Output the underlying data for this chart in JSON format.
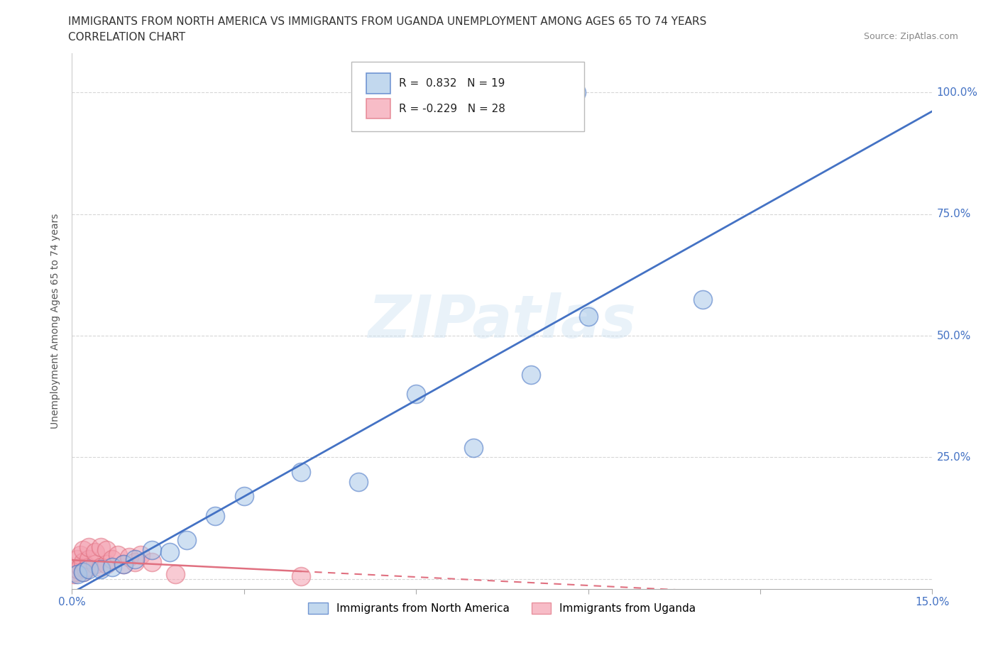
{
  "title_line1": "IMMIGRANTS FROM NORTH AMERICA VS IMMIGRANTS FROM UGANDA UNEMPLOYMENT AMONG AGES 65 TO 74 YEARS",
  "title_line2": "CORRELATION CHART",
  "source": "Source: ZipAtlas.com",
  "ylabel": "Unemployment Among Ages 65 to 74 years",
  "xlim": [
    0.0,
    0.15
  ],
  "ylim": [
    -0.02,
    1.08
  ],
  "xticks": [
    0.0,
    0.03,
    0.06,
    0.09,
    0.12,
    0.15
  ],
  "xticklabels": [
    "0.0%",
    "",
    "",
    "",
    "",
    "15.0%"
  ],
  "yticks": [
    0.0,
    0.25,
    0.5,
    0.75,
    1.0
  ],
  "yticklabels": [
    "",
    "25.0%",
    "50.0%",
    "75.0%",
    "100.0%"
  ],
  "north_america_x": [
    0.001,
    0.002,
    0.003,
    0.005,
    0.007,
    0.009,
    0.011,
    0.014,
    0.017,
    0.02,
    0.025,
    0.03,
    0.04,
    0.05,
    0.06,
    0.07,
    0.08,
    0.09,
    0.11
  ],
  "north_america_y": [
    0.01,
    0.015,
    0.02,
    0.02,
    0.025,
    0.03,
    0.04,
    0.06,
    0.055,
    0.08,
    0.13,
    0.17,
    0.22,
    0.2,
    0.38,
    0.27,
    0.42,
    0.54,
    0.575
  ],
  "outlier_x": [
    0.088
  ],
  "outlier_y": [
    1.0
  ],
  "uganda_x": [
    0.0003,
    0.0005,
    0.001,
    0.001,
    0.0015,
    0.0015,
    0.002,
    0.002,
    0.002,
    0.0025,
    0.003,
    0.003,
    0.003,
    0.004,
    0.004,
    0.005,
    0.005,
    0.006,
    0.006,
    0.007,
    0.008,
    0.009,
    0.01,
    0.011,
    0.012,
    0.014,
    0.018,
    0.04
  ],
  "uganda_y": [
    0.01,
    0.015,
    0.02,
    0.04,
    0.025,
    0.05,
    0.015,
    0.035,
    0.06,
    0.02,
    0.025,
    0.04,
    0.065,
    0.03,
    0.055,
    0.025,
    0.065,
    0.03,
    0.06,
    0.04,
    0.05,
    0.03,
    0.045,
    0.035,
    0.05,
    0.035,
    0.01,
    0.005
  ],
  "uganda_outlier_x": [
    0.04
  ],
  "uganda_outlier_y": [
    0.005
  ],
  "r_north_america": "0.832",
  "n_north_america": "19",
  "r_uganda": "-0.229",
  "n_uganda": "28",
  "blue_fill": "#a8c8e8",
  "blue_edge": "#4472c4",
  "blue_line": "#4472c4",
  "pink_fill": "#f4a0b0",
  "pink_edge": "#e07080",
  "pink_line": "#e07080",
  "tick_color": "#4472c4",
  "grid_color": "#cccccc",
  "title_fontsize": 11,
  "axis_label_fontsize": 10,
  "tick_fontsize": 11,
  "legend_fontsize": 11
}
